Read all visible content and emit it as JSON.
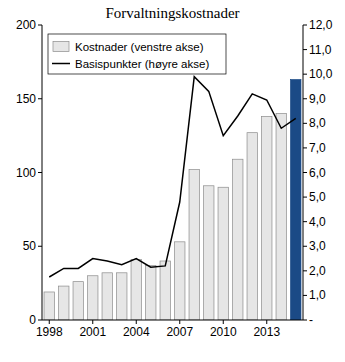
{
  "chart_data": {
    "type": "bar",
    "title": "Forvaltningskostnader",
    "categories": [
      "1998",
      null,
      null,
      "2001",
      null,
      null,
      "2004",
      null,
      null,
      "2007",
      null,
      null,
      "2010",
      null,
      null,
      "2013",
      null,
      null
    ],
    "series": [
      {
        "name": "Kostnader (venstre akse)",
        "type": "bar",
        "colors": [
          "#e6e6e6",
          "#e6e6e6",
          "#e6e6e6",
          "#e6e6e6",
          "#e6e6e6",
          "#e6e6e6",
          "#e6e6e6",
          "#e6e6e6",
          "#e6e6e6",
          "#e6e6e6",
          "#e6e6e6",
          "#e6e6e6",
          "#e6e6e6",
          "#e6e6e6",
          "#e6e6e6",
          "#e6e6e6",
          "#e6e6e6",
          "#1b4a86"
        ],
        "values": [
          19,
          23,
          26,
          30,
          32,
          32,
          41,
          37,
          40,
          53,
          102,
          91,
          90,
          109,
          127,
          138,
          140,
          163
        ]
      },
      {
        "name": "Basispunkter (høyre akse)",
        "type": "line",
        "axis": "y2",
        "color": "#000000",
        "values": [
          1.75,
          2.1,
          2.1,
          2.5,
          2.4,
          2.25,
          2.5,
          2.15,
          2.2,
          4.8,
          9.9,
          9.3,
          7.5,
          8.3,
          9.2,
          8.95,
          7.8,
          8.2
        ]
      }
    ],
    "ylim": [
      0,
      200
    ],
    "yticks": [
      0,
      50,
      100,
      150,
      200
    ],
    "y2lim": [
      0,
      12
    ],
    "y2ticks": [
      {
        "value": 0,
        "label": "-"
      },
      {
        "value": 1,
        "label": "1,0"
      },
      {
        "value": 2,
        "label": "2,0"
      },
      {
        "value": 3,
        "label": "3,0"
      },
      {
        "value": 4,
        "label": "4,0"
      },
      {
        "value": 5,
        "label": "5,0"
      },
      {
        "value": 6,
        "label": "6,0"
      },
      {
        "value": 7,
        "label": "7,0"
      },
      {
        "value": 8,
        "label": "8,0"
      },
      {
        "value": 9,
        "label": "9,0"
      },
      {
        "value": 10,
        "label": "10,0"
      },
      {
        "value": 11,
        "label": "11,0"
      },
      {
        "value": 12,
        "label": "12,0"
      }
    ],
    "grid": false,
    "legend": "top-left"
  }
}
